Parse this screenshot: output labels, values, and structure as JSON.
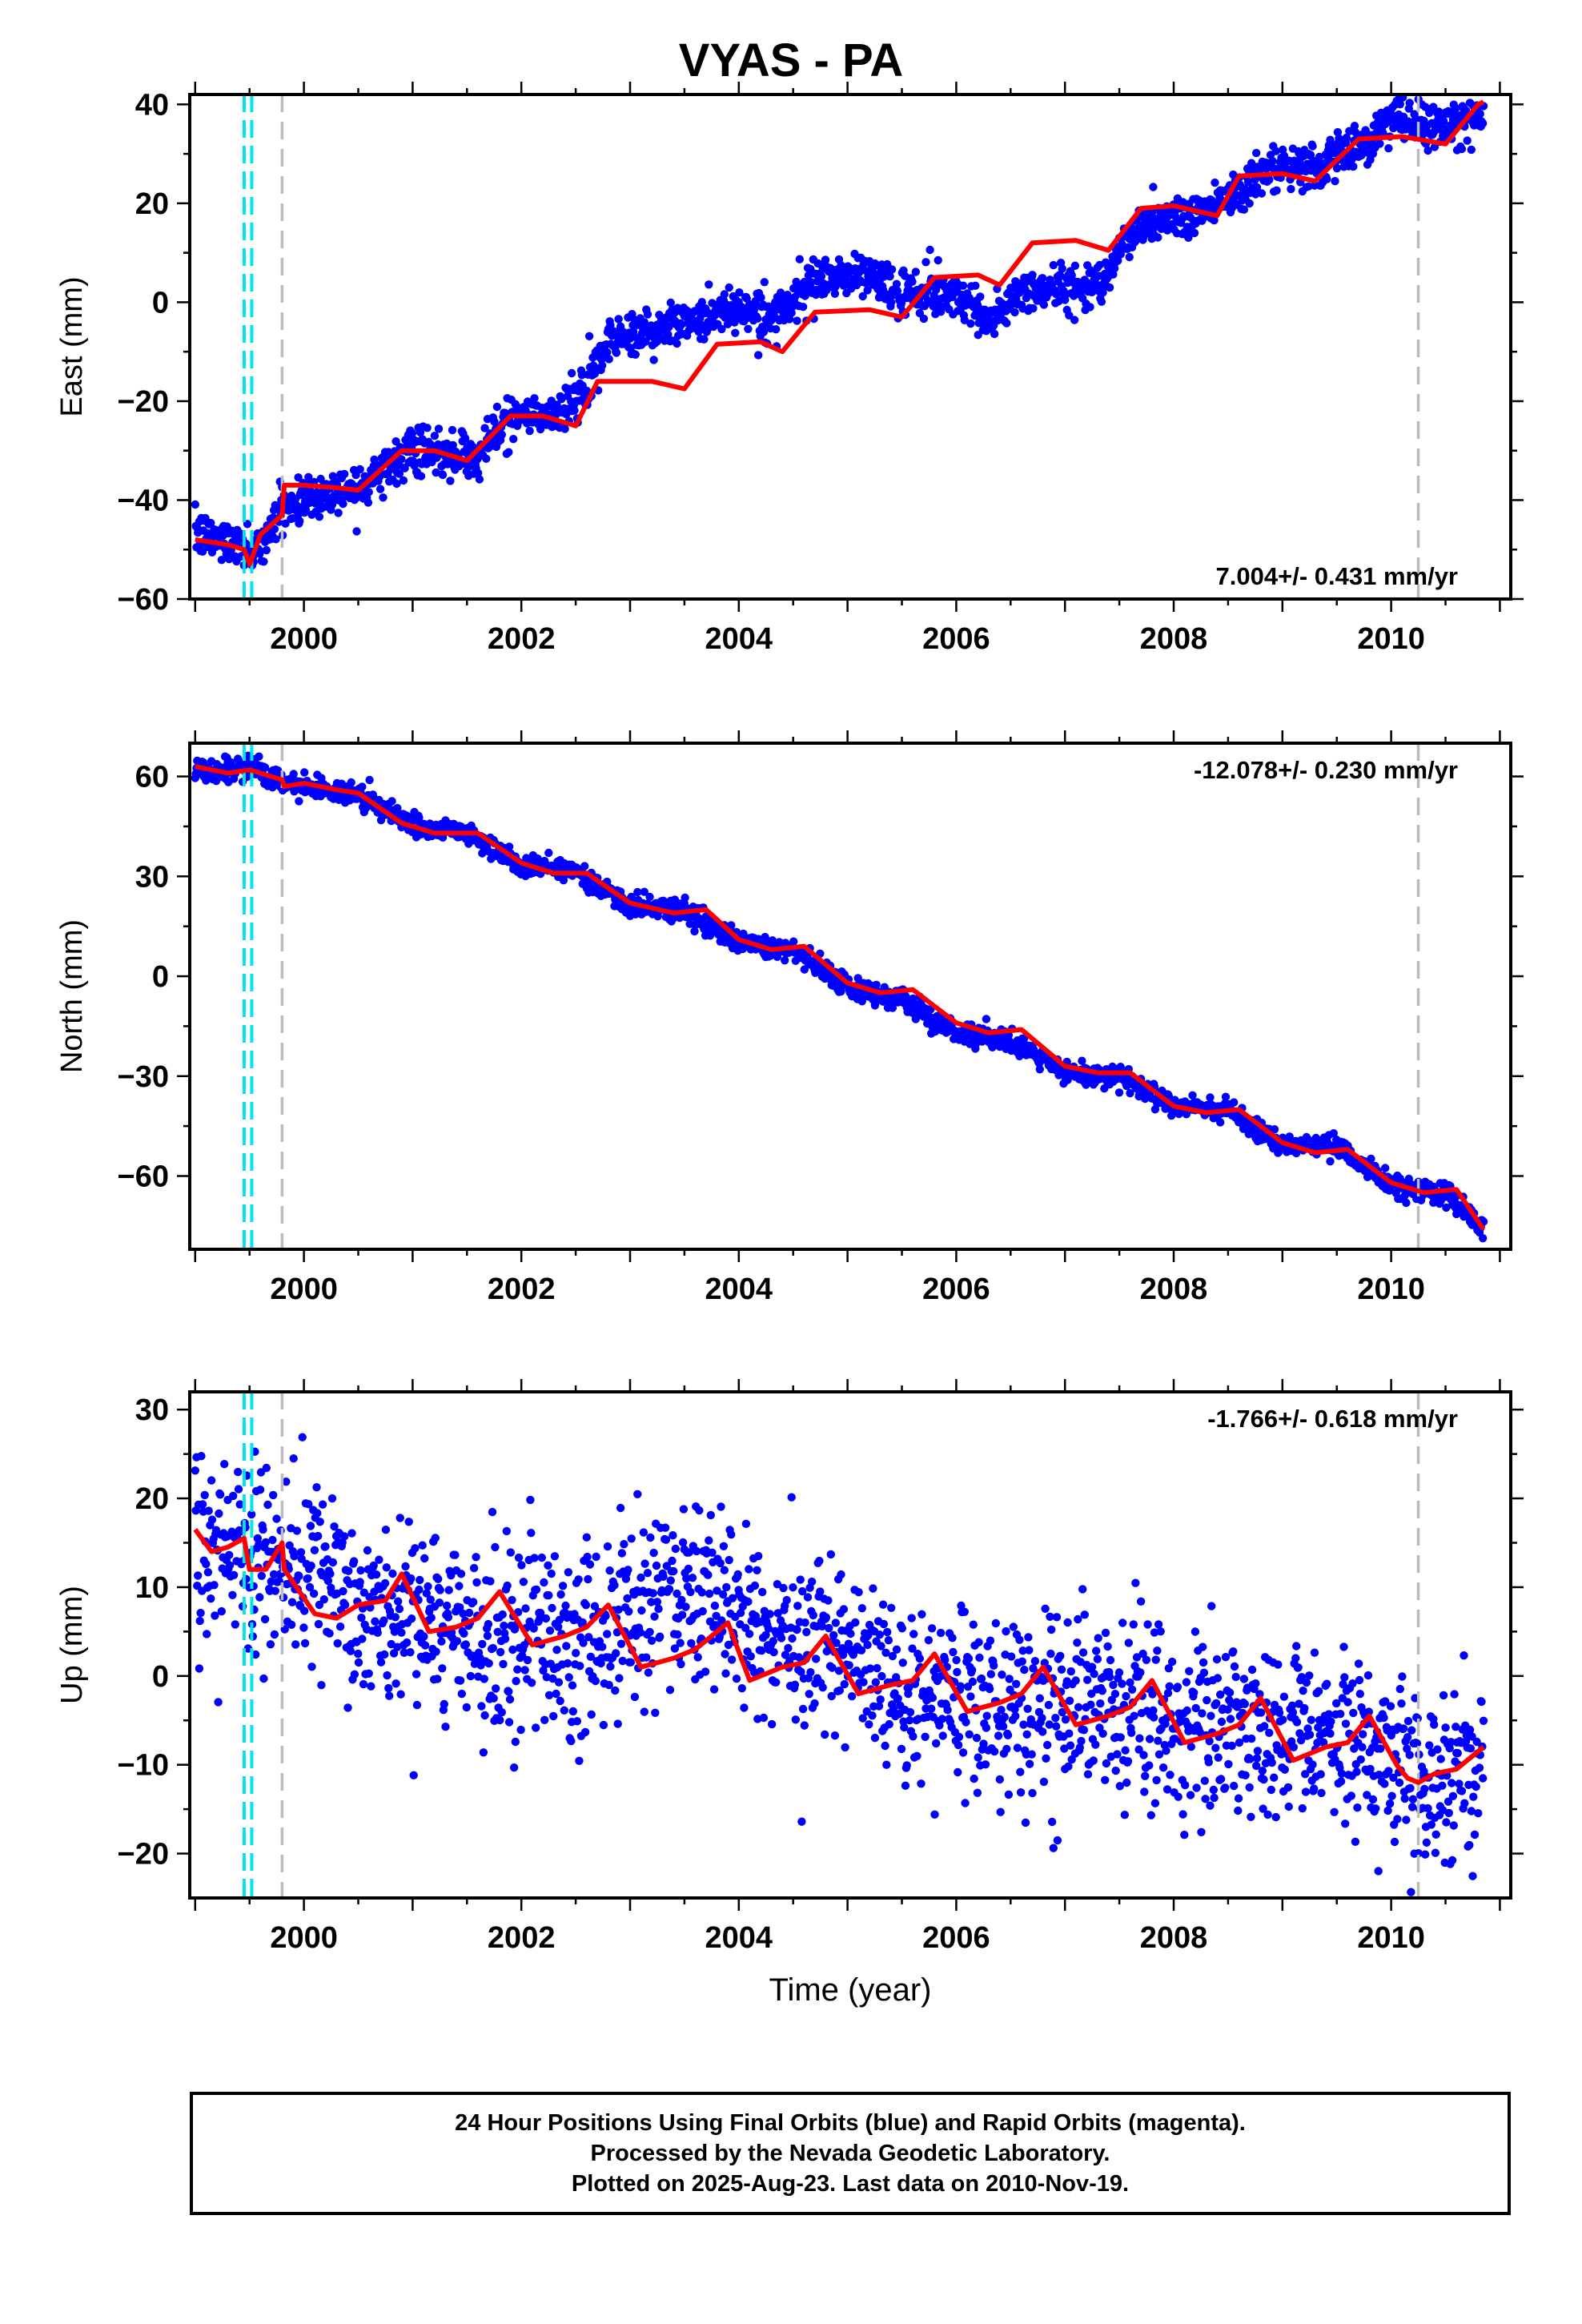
{
  "title": "VYAS - PA",
  "colors": {
    "final_orbits": "#0000ff",
    "model_fit": "#ff0000",
    "event_marker_cyan": "#00e5e5",
    "event_marker_gray": "#bbbbbb",
    "frame": "#000000"
  },
  "chart_data": [
    {
      "type": "scatter",
      "ylabel": "East (mm)",
      "xlabel": "",
      "xlim": [
        1998.95,
        2011.1
      ],
      "ylim": [
        -60,
        42
      ],
      "xticks": [
        2000,
        2002,
        2004,
        2006,
        2008,
        2010
      ],
      "yticks": [
        -60,
        -40,
        -20,
        0,
        20,
        40
      ],
      "rate_label": "7.004+/- 0.431 mm/yr",
      "rate_label_position": "bottom-right",
      "legend": "none",
      "grid": false,
      "event_lines": {
        "cyan": [
          1999.45,
          1999.52
        ],
        "gray": [
          1999.8,
          2010.25
        ]
      },
      "series": [
        {
          "marker": "dot",
          "trend": [
            [
              1999.0,
              -47
            ],
            [
              1999.45,
              -49
            ],
            [
              1999.5,
              -52
            ],
            [
              1999.8,
              -42
            ],
            [
              2000.0,
              -40
            ],
            [
              2000.5,
              -37
            ],
            [
              2001.0,
              -30
            ],
            [
              2001.5,
              -32
            ],
            [
              2001.9,
              -23
            ],
            [
              2002.3,
              -23
            ],
            [
              2002.6,
              -18
            ],
            [
              2002.8,
              -8
            ],
            [
              2003.5,
              -4
            ],
            [
              2004.0,
              -1
            ],
            [
              2004.3,
              -3
            ],
            [
              2004.8,
              5
            ],
            [
              2005.2,
              6
            ],
            [
              2005.5,
              1
            ],
            [
              2006.0,
              2
            ],
            [
              2006.3,
              -4
            ],
            [
              2006.6,
              2
            ],
            [
              2007.0,
              3
            ],
            [
              2007.3,
              4
            ],
            [
              2007.7,
              16
            ],
            [
              2008.2,
              18
            ],
            [
              2008.4,
              20
            ],
            [
              2008.8,
              26
            ],
            [
              2009.2,
              27
            ],
            [
              2009.6,
              30
            ],
            [
              2010.0,
              37
            ],
            [
              2010.4,
              35
            ],
            [
              2010.85,
              37
            ]
          ],
          "spread": 2.2
        },
        {
          "marker": "line",
          "points": [
            [
              1999.0,
              -48
            ],
            [
              1999.3,
              -49
            ],
            [
              1999.45,
              -50
            ],
            [
              1999.5,
              -53
            ],
            [
              1999.6,
              -47
            ],
            [
              1999.8,
              -43
            ],
            [
              1999.82,
              -37
            ],
            [
              2000.0,
              -37
            ],
            [
              2000.3,
              -37.5
            ],
            [
              2000.5,
              -38
            ],
            [
              2000.9,
              -30
            ],
            [
              2001.2,
              -30
            ],
            [
              2001.5,
              -32
            ],
            [
              2001.9,
              -23
            ],
            [
              2002.2,
              -23
            ],
            [
              2002.5,
              -25
            ],
            [
              2002.7,
              -16
            ],
            [
              2003.2,
              -16
            ],
            [
              2003.5,
              -17.5
            ],
            [
              2003.8,
              -8.5
            ],
            [
              2004.2,
              -8
            ],
            [
              2004.4,
              -10
            ],
            [
              2004.7,
              -2
            ],
            [
              2005.2,
              -1.5
            ],
            [
              2005.5,
              -3
            ],
            [
              2005.8,
              5
            ],
            [
              2006.2,
              5.5
            ],
            [
              2006.4,
              3.5
            ],
            [
              2006.7,
              12
            ],
            [
              2007.1,
              12.5
            ],
            [
              2007.4,
              10.5
            ],
            [
              2007.7,
              19
            ],
            [
              2008.0,
              19.5
            ],
            [
              2008.4,
              17.5
            ],
            [
              2008.6,
              25.5
            ],
            [
              2009.0,
              26
            ],
            [
              2009.3,
              24.5
            ],
            [
              2009.7,
              33
            ],
            [
              2010.1,
              33.5
            ],
            [
              2010.5,
              32
            ],
            [
              2010.8,
              40
            ],
            [
              2010.85,
              40.5
            ]
          ]
        }
      ]
    },
    {
      "type": "scatter",
      "ylabel": "North (mm)",
      "xlabel": "",
      "xlim": [
        1998.95,
        2011.1
      ],
      "ylim": [
        -82,
        70
      ],
      "xticks": [
        2000,
        2002,
        2004,
        2006,
        2008,
        2010
      ],
      "yticks": [
        -60,
        -30,
        0,
        30,
        60
      ],
      "rate_label": "-12.078+/- 0.230 mm/yr",
      "rate_label_position": "top-right",
      "legend": "none",
      "grid": false,
      "event_lines": {
        "cyan": [
          1999.45,
          1999.52
        ],
        "gray": [
          1999.8,
          2010.25
        ]
      },
      "series": [
        {
          "marker": "dot",
          "trend": [
            [
              1999.0,
              62
            ],
            [
              1999.5,
              62
            ],
            [
              2000.0,
              57
            ],
            [
              2000.5,
              55
            ],
            [
              2001.0,
              45
            ],
            [
              2001.5,
              43
            ],
            [
              2002.0,
              33
            ],
            [
              2002.5,
              32
            ],
            [
              2003.0,
              21
            ],
            [
              2003.5,
              20
            ],
            [
              2004.0,
              10
            ],
            [
              2004.5,
              8
            ],
            [
              2005.0,
              -3
            ],
            [
              2005.5,
              -7
            ],
            [
              2006.0,
              -17
            ],
            [
              2006.5,
              -20
            ],
            [
              2007.0,
              -29
            ],
            [
              2007.5,
              -30
            ],
            [
              2008.0,
              -39
            ],
            [
              2008.5,
              -40
            ],
            [
              2009.0,
              -51
            ],
            [
              2009.5,
              -51
            ],
            [
              2010.0,
              -63
            ],
            [
              2010.5,
              -65
            ],
            [
              2010.85,
              -76
            ]
          ],
          "spread": 1.6
        },
        {
          "marker": "line",
          "points": [
            [
              1999.0,
              63
            ],
            [
              1999.3,
              61
            ],
            [
              1999.5,
              62
            ],
            [
              1999.8,
              59
            ],
            [
              1999.82,
              57
            ],
            [
              2000.0,
              58
            ],
            [
              2000.3,
              56
            ],
            [
              2000.5,
              55
            ],
            [
              2000.9,
              46
            ],
            [
              2001.2,
              43
            ],
            [
              2001.6,
              43
            ],
            [
              2002.0,
              34
            ],
            [
              2002.3,
              31
            ],
            [
              2002.6,
              31
            ],
            [
              2003.0,
              22
            ],
            [
              2003.4,
              19
            ],
            [
              2003.7,
              20
            ],
            [
              2004.0,
              11
            ],
            [
              2004.3,
              8
            ],
            [
              2004.6,
              9
            ],
            [
              2005.0,
              -2
            ],
            [
              2005.3,
              -5
            ],
            [
              2005.6,
              -4
            ],
            [
              2006.0,
              -14
            ],
            [
              2006.3,
              -17
            ],
            [
              2006.6,
              -16
            ],
            [
              2007.0,
              -27
            ],
            [
              2007.3,
              -29
            ],
            [
              2007.6,
              -29
            ],
            [
              2008.0,
              -39
            ],
            [
              2008.3,
              -41
            ],
            [
              2008.6,
              -40
            ],
            [
              2009.0,
              -50
            ],
            [
              2009.3,
              -53
            ],
            [
              2009.6,
              -52
            ],
            [
              2010.0,
              -62
            ],
            [
              2010.3,
              -65
            ],
            [
              2010.6,
              -64
            ],
            [
              2010.85,
              -76
            ]
          ]
        }
      ]
    },
    {
      "type": "scatter",
      "ylabel": "Up (mm)",
      "xlabel": "Time (year)",
      "xlim": [
        1998.95,
        2011.1
      ],
      "ylim": [
        -25,
        32
      ],
      "xticks": [
        2000,
        2002,
        2004,
        2006,
        2008,
        2010
      ],
      "yticks": [
        -20,
        -10,
        0,
        10,
        20,
        30
      ],
      "rate_label": "-1.766+/- 0.618 mm/yr",
      "rate_label_position": "top-right",
      "legend": "none",
      "grid": false,
      "event_lines": {
        "cyan": [
          1999.45,
          1999.52
        ],
        "gray": [
          1999.8,
          2010.25
        ]
      },
      "series": [
        {
          "marker": "dot",
          "trend": [
            [
              1999.0,
              15
            ],
            [
              1999.5,
              13
            ],
            [
              2000.0,
              12
            ],
            [
              2000.5,
              7
            ],
            [
              2001.0,
              6
            ],
            [
              2001.5,
              4
            ],
            [
              2002.0,
              5
            ],
            [
              2002.5,
              4
            ],
            [
              2003.0,
              8
            ],
            [
              2003.5,
              9
            ],
            [
              2004.0,
              8
            ],
            [
              2004.5,
              3
            ],
            [
              2005.0,
              2
            ],
            [
              2005.5,
              -3
            ],
            [
              2006.0,
              -3
            ],
            [
              2006.5,
              -3
            ],
            [
              2007.0,
              -4
            ],
            [
              2007.5,
              -4
            ],
            [
              2008.0,
              -5
            ],
            [
              2008.5,
              -6
            ],
            [
              2009.0,
              -6
            ],
            [
              2009.5,
              -7
            ],
            [
              2010.0,
              -8
            ],
            [
              2010.3,
              -13
            ],
            [
              2010.5,
              -11
            ],
            [
              2010.85,
              -10
            ]
          ],
          "spread": 5.0
        },
        {
          "marker": "line",
          "points": [
            [
              1999.0,
              16.5
            ],
            [
              1999.15,
              14
            ],
            [
              1999.3,
              14.5
            ],
            [
              1999.45,
              15.5
            ],
            [
              1999.5,
              12
            ],
            [
              1999.65,
              12
            ],
            [
              1999.8,
              15
            ],
            [
              1999.82,
              12
            ],
            [
              2000.1,
              7
            ],
            [
              2000.3,
              6.5
            ],
            [
              2000.5,
              8
            ],
            [
              2000.75,
              8.5
            ],
            [
              2000.9,
              11.5
            ],
            [
              2001.15,
              5
            ],
            [
              2001.4,
              5.5
            ],
            [
              2001.6,
              6.5
            ],
            [
              2001.8,
              9.5
            ],
            [
              2002.1,
              3.5
            ],
            [
              2002.4,
              4.5
            ],
            [
              2002.6,
              5.5
            ],
            [
              2002.8,
              8
            ],
            [
              2003.1,
              1
            ],
            [
              2003.4,
              2
            ],
            [
              2003.6,
              3
            ],
            [
              2003.9,
              6
            ],
            [
              2004.1,
              -0.5
            ],
            [
              2004.4,
              1
            ],
            [
              2004.6,
              1.5
            ],
            [
              2004.8,
              4.5
            ],
            [
              2005.1,
              -2
            ],
            [
              2005.4,
              -1
            ],
            [
              2005.6,
              -0.5
            ],
            [
              2005.8,
              2.5
            ],
            [
              2006.1,
              -4
            ],
            [
              2006.4,
              -3
            ],
            [
              2006.6,
              -2
            ],
            [
              2006.8,
              1
            ],
            [
              2007.1,
              -5.5
            ],
            [
              2007.4,
              -4.5
            ],
            [
              2007.6,
              -3.5
            ],
            [
              2007.8,
              -0.5
            ],
            [
              2008.1,
              -7.5
            ],
            [
              2008.4,
              -6.5
            ],
            [
              2008.6,
              -5.5
            ],
            [
              2008.8,
              -2.5
            ],
            [
              2009.1,
              -9.5
            ],
            [
              2009.4,
              -8
            ],
            [
              2009.6,
              -7.5
            ],
            [
              2009.8,
              -4.5
            ],
            [
              2010.05,
              -10
            ],
            [
              2010.15,
              -11.5
            ],
            [
              2010.25,
              -12
            ],
            [
              2010.4,
              -11
            ],
            [
              2010.6,
              -10.5
            ],
            [
              2010.85,
              -8
            ]
          ]
        }
      ]
    }
  ],
  "footer": {
    "line1": "24 Hour Positions Using Final Orbits (blue) and Rapid Orbits (magenta).",
    "line2": "Processed by the Nevada Geodetic Laboratory.",
    "line3": "Plotted on 2025-Aug-23. Last data on 2010-Nov-19."
  }
}
